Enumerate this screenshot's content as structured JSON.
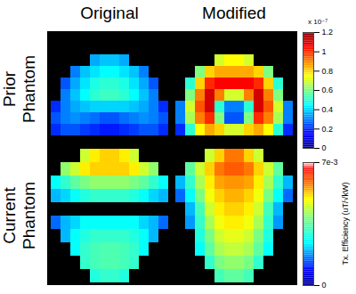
{
  "chart_data": {
    "type": "heatmap",
    "columns": [
      "Original",
      "Modified"
    ],
    "rows": [
      {
        "label": "Prior Phantom",
        "colorbar": {
          "range": [
            0,
            1.2
          ],
          "ticks": [
            0,
            0.2,
            0.4,
            0.6,
            0.8,
            1,
            1.2
          ],
          "scale_note": "x 10⁻⁷"
        },
        "panels": [
          {
            "column": "Original",
            "cells": [
              [
                null,
                null,
                null,
                null,
                null,
                null,
                null,
                null,
                null,
                null,
                null,
                null
              ],
              [
                null,
                null,
                null,
                null,
                null,
                null,
                null,
                null,
                null,
                null,
                null,
                null
              ],
              [
                null,
                null,
                null,
                null,
                0.35,
                0.38,
                0.38,
                0.35,
                null,
                null,
                null,
                null
              ],
              [
                null,
                null,
                0.3,
                0.38,
                0.42,
                0.45,
                0.45,
                0.42,
                0.38,
                0.3,
                null,
                null
              ],
              [
                null,
                0.25,
                0.35,
                0.42,
                0.48,
                0.5,
                0.5,
                0.48,
                0.42,
                0.35,
                0.25,
                null
              ],
              [
                null,
                0.3,
                0.38,
                0.45,
                0.5,
                0.52,
                0.52,
                0.5,
                0.45,
                0.38,
                0.3,
                null
              ],
              [
                0.2,
                0.3,
                0.35,
                0.38,
                0.4,
                0.4,
                0.4,
                0.4,
                0.38,
                0.35,
                0.3,
                0.2
              ],
              [
                0.25,
                0.3,
                0.32,
                0.3,
                0.28,
                0.25,
                0.25,
                0.28,
                0.3,
                0.32,
                0.3,
                0.25
              ],
              [
                0.2,
                0.25,
                0.25,
                0.22,
                0.2,
                0.18,
                0.18,
                0.2,
                0.22,
                0.25,
                0.25,
                0.2
              ],
              [
                null,
                null,
                null,
                null,
                null,
                null,
                null,
                null,
                null,
                null,
                null,
                null
              ]
            ]
          },
          {
            "column": "Modified",
            "cells": [
              [
                null,
                null,
                null,
                null,
                null,
                null,
                null,
                null,
                null,
                null,
                null,
                null
              ],
              [
                null,
                null,
                null,
                null,
                null,
                null,
                null,
                null,
                null,
                null,
                null,
                null
              ],
              [
                null,
                null,
                null,
                null,
                0.7,
                0.75,
                0.75,
                0.7,
                null,
                null,
                null,
                null
              ],
              [
                null,
                null,
                0.6,
                0.8,
                0.85,
                0.85,
                0.85,
                0.85,
                0.8,
                0.6,
                null,
                null
              ],
              [
                null,
                0.5,
                0.8,
                1.0,
                1.05,
                1.05,
                1.05,
                1.05,
                1.0,
                0.8,
                0.5,
                null
              ],
              [
                null,
                0.6,
                0.9,
                1.1,
                0.9,
                0.7,
                0.7,
                0.9,
                1.1,
                0.9,
                0.6,
                null
              ],
              [
                0.3,
                0.7,
                0.95,
                1.1,
                0.5,
                0.3,
                0.3,
                0.5,
                1.1,
                0.95,
                0.7,
                0.3
              ],
              [
                0.3,
                0.65,
                0.9,
                1.0,
                0.6,
                0.25,
                0.25,
                0.6,
                1.0,
                0.9,
                0.65,
                0.3
              ],
              [
                0.2,
                0.5,
                0.75,
                0.85,
                0.8,
                0.7,
                0.7,
                0.8,
                0.85,
                0.75,
                0.5,
                0.2
              ],
              [
                null,
                null,
                null,
                null,
                null,
                null,
                null,
                null,
                null,
                null,
                null,
                null
              ]
            ]
          }
        ]
      },
      {
        "label": "Current Phantom",
        "colorbar": {
          "range": [
            0,
            0.007
          ],
          "ticks": [
            0,
            {
              "value": 0.007,
              "label": "7e-3"
            }
          ],
          "label": "Tx. Efficiency (uT/√kW)"
        },
        "panels": [
          {
            "column": "Original",
            "cells": [
              [
                null,
                null,
                null,
                0.0045,
                0.005,
                0.0052,
                0.0052,
                0.005,
                0.0045,
                null,
                null,
                null
              ],
              [
                null,
                0.004,
                0.0045,
                0.005,
                0.0052,
                0.0052,
                0.0052,
                0.0052,
                0.005,
                0.0045,
                0.004,
                null
              ],
              [
                0.0025,
                0.003,
                0.0035,
                0.0038,
                0.004,
                0.004,
                0.004,
                0.004,
                0.0038,
                0.0035,
                0.003,
                0.0025
              ],
              [
                0.002,
                0.0022,
                0.0025,
                0.0028,
                0.003,
                0.003,
                0.003,
                0.003,
                0.0028,
                0.0025,
                0.0022,
                0.002
              ],
              [
                null,
                null,
                null,
                null,
                null,
                null,
                null,
                null,
                null,
                null,
                null,
                null
              ],
              [
                0.0015,
                0.002,
                0.0022,
                0.0025,
                0.0025,
                0.0025,
                0.0025,
                0.0025,
                0.0025,
                0.0022,
                0.002,
                0.0015
              ],
              [
                null,
                0.002,
                0.0025,
                0.0028,
                0.003,
                0.003,
                0.003,
                0.003,
                0.0028,
                0.0025,
                0.002,
                null
              ],
              [
                null,
                null,
                0.0025,
                0.003,
                0.0032,
                0.0033,
                0.0033,
                0.0032,
                0.003,
                0.0025,
                null,
                null
              ],
              [
                null,
                null,
                null,
                0.003,
                0.0032,
                0.0033,
                0.0033,
                0.0032,
                0.003,
                null,
                null,
                null
              ],
              [
                null,
                null,
                null,
                null,
                0.0028,
                0.003,
                0.003,
                0.0028,
                null,
                null,
                null,
                null
              ]
            ]
          },
          {
            "column": "Modified",
            "cells": [
              [
                null,
                null,
                null,
                0.0045,
                0.0052,
                0.0058,
                0.0058,
                0.0052,
                0.0045,
                null,
                null,
                null
              ],
              [
                null,
                0.0035,
                0.0045,
                0.0052,
                0.0058,
                0.006,
                0.006,
                0.0058,
                0.0052,
                0.0045,
                0.0035,
                null
              ],
              [
                0.002,
                0.003,
                0.0042,
                0.005,
                0.0055,
                0.0056,
                0.0056,
                0.0055,
                0.005,
                0.0042,
                0.003,
                0.002
              ],
              [
                0.0015,
                0.0025,
                0.0038,
                0.0048,
                0.0052,
                0.0054,
                0.0054,
                0.0052,
                0.0048,
                0.0038,
                0.0025,
                0.0015
              ],
              [
                null,
                0.002,
                0.0032,
                0.0045,
                0.005,
                0.0052,
                0.0052,
                0.005,
                0.0045,
                0.0032,
                0.002,
                null
              ],
              [
                null,
                0.0018,
                0.003,
                0.0042,
                0.0048,
                0.005,
                0.005,
                0.0048,
                0.0042,
                0.003,
                0.0018,
                null
              ],
              [
                null,
                null,
                0.0028,
                0.0038,
                0.0045,
                0.0047,
                0.0047,
                0.0045,
                0.0038,
                0.0028,
                null,
                null
              ],
              [
                null,
                null,
                0.0025,
                0.0035,
                0.0042,
                0.0044,
                0.0044,
                0.0042,
                0.0035,
                0.0025,
                null,
                null
              ],
              [
                null,
                null,
                null,
                0.003,
                0.0038,
                0.004,
                0.004,
                0.0038,
                0.003,
                null,
                null,
                null
              ],
              [
                null,
                null,
                null,
                null,
                0.0032,
                0.0035,
                0.0035,
                0.0032,
                null,
                null,
                null,
                null
              ]
            ]
          }
        ]
      }
    ]
  }
}
